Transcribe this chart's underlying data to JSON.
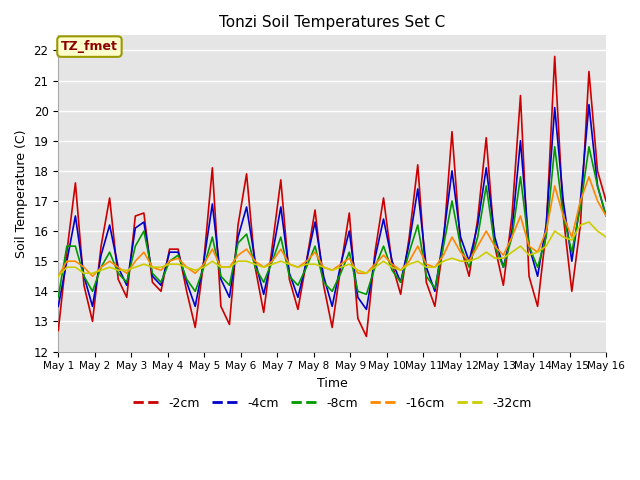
{
  "title": "Tonzi Soil Temperatures Set C",
  "xlabel": "Time",
  "ylabel": "Soil Temperature (C)",
  "ylim": [
    12.0,
    22.5
  ],
  "yticks": [
    12.0,
    13.0,
    14.0,
    15.0,
    16.0,
    17.0,
    18.0,
    19.0,
    20.0,
    21.0,
    22.0
  ],
  "annotation": "TZ_fmet",
  "legend_labels": [
    "-2cm",
    "-4cm",
    "-8cm",
    "-16cm",
    "-32cm"
  ],
  "series_colors": [
    "#cc0000",
    "#0000cc",
    "#009900",
    "#ff8800",
    "#cccc00"
  ],
  "x_tick_labels": [
    "May 1",
    "May 2",
    "May 3",
    "May 4",
    "May 5",
    "May 6",
    "May 7",
    "May 8",
    "May 9",
    "May 10",
    "May 11",
    "May 12",
    "May 13",
    "May 14",
    "May 15",
    "May 16"
  ],
  "num_days": 16,
  "pts_per_day": 4,
  "background_color": "#e5e5e5",
  "fig_bg": "#ffffff",
  "line_width": 1.2,
  "t2": [
    12.7,
    15.3,
    17.6,
    14.2,
    13.0,
    15.5,
    17.1,
    14.4,
    13.8,
    16.5,
    16.6,
    14.3,
    14.0,
    15.4,
    15.4,
    14.0,
    12.8,
    15.0,
    18.1,
    13.5,
    12.9,
    16.2,
    17.9,
    14.8,
    13.3,
    15.5,
    17.7,
    14.4,
    13.4,
    15.0,
    16.7,
    14.2,
    12.8,
    14.8,
    16.6,
    13.1,
    12.5,
    15.3,
    17.1,
    14.9,
    13.9,
    15.8,
    18.2,
    14.3,
    13.5,
    15.6,
    19.3,
    15.5,
    14.5,
    16.4,
    19.1,
    15.5,
    14.2,
    16.5,
    20.5,
    14.5,
    13.5,
    16.0,
    21.8,
    16.5,
    14.0,
    16.2,
    21.3,
    18.0,
    17.0
  ],
  "t4": [
    13.5,
    15.0,
    16.5,
    14.5,
    13.5,
    15.2,
    16.2,
    14.8,
    14.2,
    16.1,
    16.3,
    14.5,
    14.2,
    15.3,
    15.3,
    14.3,
    13.5,
    15.0,
    16.9,
    14.4,
    13.8,
    15.8,
    16.8,
    15.0,
    13.9,
    15.2,
    16.8,
    14.6,
    13.8,
    15.0,
    16.3,
    14.5,
    13.5,
    14.9,
    16.0,
    13.8,
    13.4,
    15.1,
    16.4,
    15.0,
    14.3,
    15.6,
    17.4,
    14.8,
    14.0,
    15.8,
    18.0,
    15.8,
    15.0,
    16.2,
    18.1,
    15.8,
    14.8,
    16.0,
    19.0,
    15.5,
    14.5,
    16.2,
    20.1,
    17.0,
    15.0,
    17.0,
    20.2,
    17.5,
    16.5
  ],
  "t8": [
    13.8,
    15.5,
    15.5,
    14.5,
    14.0,
    14.8,
    15.3,
    14.6,
    14.3,
    15.5,
    16.0,
    14.6,
    14.3,
    15.0,
    15.2,
    14.4,
    14.0,
    14.8,
    15.8,
    14.5,
    14.2,
    15.6,
    15.9,
    14.8,
    14.3,
    15.0,
    15.8,
    14.5,
    14.2,
    14.8,
    15.5,
    14.3,
    14.0,
    14.6,
    15.3,
    14.0,
    13.9,
    14.8,
    15.5,
    14.7,
    14.3,
    15.3,
    16.2,
    14.5,
    14.1,
    15.5,
    17.0,
    15.5,
    14.8,
    15.8,
    17.5,
    15.5,
    14.8,
    15.8,
    17.8,
    15.5,
    14.8,
    15.8,
    18.8,
    16.5,
    15.3,
    16.8,
    18.8,
    17.5,
    16.5
  ],
  "t16": [
    14.5,
    15.0,
    15.0,
    14.8,
    14.5,
    14.8,
    15.0,
    14.8,
    14.6,
    15.0,
    15.3,
    14.8,
    14.7,
    15.0,
    15.1,
    14.8,
    14.6,
    14.9,
    15.4,
    14.8,
    14.8,
    15.2,
    15.4,
    15.0,
    14.8,
    15.0,
    15.4,
    14.9,
    14.8,
    15.0,
    15.3,
    14.8,
    14.7,
    14.9,
    15.1,
    14.6,
    14.6,
    14.9,
    15.2,
    14.9,
    14.7,
    15.0,
    15.5,
    14.9,
    14.8,
    15.2,
    15.8,
    15.3,
    15.0,
    15.5,
    16.0,
    15.5,
    15.2,
    15.8,
    16.5,
    15.5,
    15.3,
    16.0,
    17.5,
    16.5,
    15.8,
    17.0,
    17.8,
    17.0,
    16.5
  ],
  "t32": [
    14.5,
    14.8,
    14.8,
    14.6,
    14.6,
    14.7,
    14.8,
    14.7,
    14.7,
    14.8,
    14.9,
    14.8,
    14.8,
    14.9,
    14.9,
    14.8,
    14.7,
    14.8,
    15.0,
    14.8,
    14.8,
    15.0,
    15.0,
    14.9,
    14.8,
    14.9,
    15.0,
    14.9,
    14.8,
    14.9,
    14.9,
    14.8,
    14.7,
    14.8,
    14.9,
    14.7,
    14.6,
    14.8,
    15.0,
    14.8,
    14.7,
    14.9,
    15.0,
    14.8,
    14.8,
    15.0,
    15.1,
    15.0,
    15.0,
    15.1,
    15.3,
    15.1,
    15.1,
    15.3,
    15.5,
    15.2,
    15.3,
    15.5,
    16.0,
    15.8,
    15.7,
    16.2,
    16.3,
    16.0,
    15.8
  ]
}
